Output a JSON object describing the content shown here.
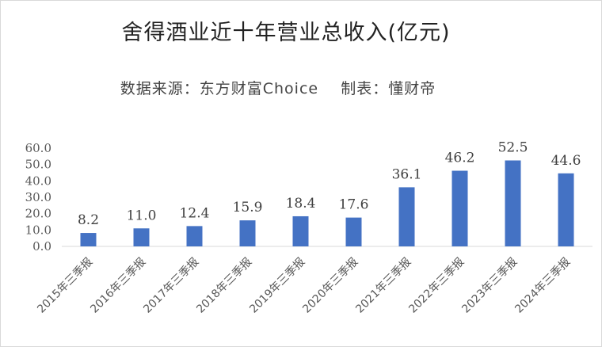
{
  "chart_data": {
    "type": "bar",
    "title": "舍得酒业近十年营业总收入(亿元)",
    "subtitle": "数据来源：东方财富Choice    制表：懂财帝",
    "categories": [
      "2015年三季报",
      "2016年三季报",
      "2017年三季报",
      "2018年三季报",
      "2019年三季报",
      "2020年三季报",
      "2021年三季报",
      "2022年三季报",
      "2023年三季报",
      "2024年三季报"
    ],
    "values": [
      8.2,
      11.0,
      12.4,
      15.9,
      18.4,
      17.6,
      36.1,
      46.2,
      52.5,
      44.6
    ],
    "value_labels": [
      "8.2",
      "11.0",
      "12.4",
      "15.9",
      "18.4",
      "17.6",
      "36.1",
      "46.2",
      "52.5",
      "44.6"
    ],
    "yticks": [
      "0.0",
      "10.0",
      "20.0",
      "30.0",
      "40.0",
      "50.0",
      "60.0"
    ],
    "ylim": [
      0,
      60
    ],
    "xlabel": "",
    "ylabel": "",
    "grid": false,
    "bar_color": "#4472c4"
  }
}
